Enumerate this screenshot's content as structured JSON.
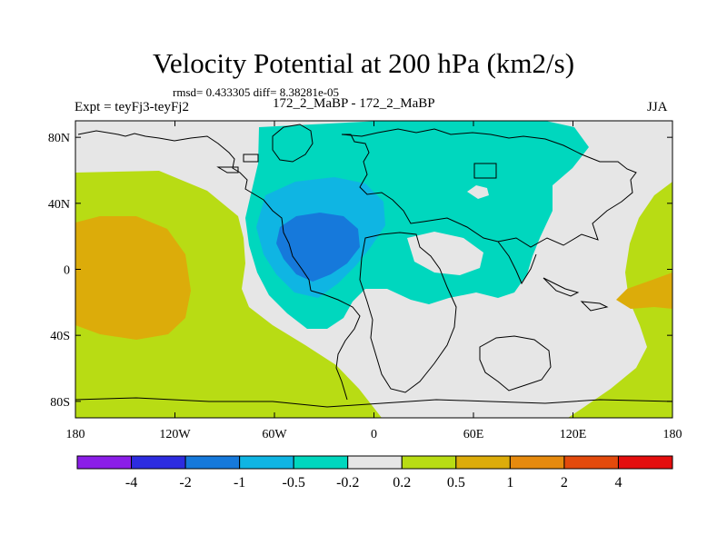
{
  "header": {
    "title": "Velocity Potential at 200 hPa (km2/s)",
    "stats": "rmsd= 0.433305 diff= 8.38281e-05",
    "left_label": "Expt = teyFj3-teyFj2",
    "center_label": "172_2_MaBP - 172_2_MaBP",
    "right_label": "JJA"
  },
  "colors": {
    "c_lt_m4": "#8b1ee8",
    "c_m4_m2": "#2d2ce0",
    "c_m2_m1": "#1679db",
    "c_m1_m05": "#0fb5e3",
    "c_m05_m02": "#00d7be",
    "c_m02_02": "#e6e6e6",
    "c_02_05": "#b8dc14",
    "c_05_1": "#dcac0a",
    "c_1_2": "#e68a0e",
    "c_2_4": "#e34a0c",
    "c_gt_4": "#e40e0e",
    "coast": "#000000"
  },
  "chart_data": {
    "type": "contour-map",
    "title": "Velocity Potential at 200 hPa (km2/s)",
    "projection": "cylindrical-equidistant",
    "xlim": [
      -180,
      180
    ],
    "ylim": [
      -90,
      90
    ],
    "x_ticks": [
      {
        "value": -180,
        "label": "180"
      },
      {
        "value": -120,
        "label": "120W"
      },
      {
        "value": -60,
        "label": "60W"
      },
      {
        "value": 0,
        "label": "0"
      },
      {
        "value": 60,
        "label": "60E"
      },
      {
        "value": 120,
        "label": "120E"
      },
      {
        "value": 180,
        "label": "180"
      }
    ],
    "y_ticks": [
      {
        "value": 80,
        "label": "80N"
      },
      {
        "value": 40,
        "label": "40N"
      },
      {
        "value": 0,
        "label": "0"
      },
      {
        "value": -40,
        "label": "40S"
      },
      {
        "value": -80,
        "label": "80S"
      }
    ],
    "contour_levels": [
      -4,
      -2,
      -1,
      -0.5,
      -0.2,
      0.2,
      0.5,
      1,
      2,
      4
    ],
    "colorbar_labels": [
      "-4",
      "-2",
      "-1",
      "-0.5",
      "-0.2",
      "0.2",
      "0.5",
      "1",
      "2",
      "4"
    ],
    "colorbar_colors": [
      "#8b1ee8",
      "#2d2ce0",
      "#1679db",
      "#0fb5e3",
      "#00d7be",
      "#e6e6e6",
      "#b8dc14",
      "#dcac0a",
      "#e68a0e",
      "#e34a0c",
      "#e40e0e"
    ]
  }
}
